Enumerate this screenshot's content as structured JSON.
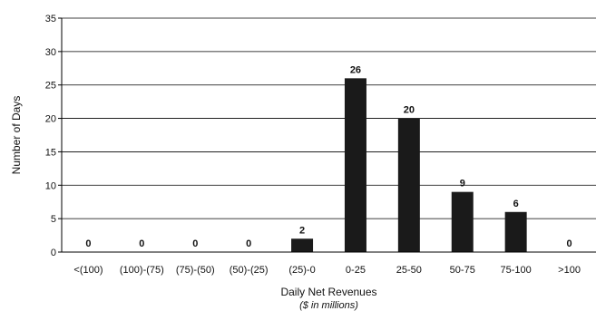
{
  "chart_data": {
    "type": "bar",
    "categories": [
      "<(100)",
      "(100)-(75)",
      "(75)-(50)",
      "(50)-(25)",
      "(25)-0",
      "0-25",
      "25-50",
      "50-75",
      "75-100",
      ">100"
    ],
    "values": [
      0,
      0,
      0,
      0,
      2,
      26,
      20,
      9,
      6,
      0
    ],
    "data_labels": [
      "0",
      "0",
      "0",
      "0",
      "2",
      "26",
      "20",
      "9",
      "6",
      "0"
    ],
    "xlabel": "Daily Net Revenues",
    "xlabel_sub": "($ in millions)",
    "ylabel": "Number of Days",
    "ylim": [
      0,
      35
    ],
    "yticks": [
      0,
      5,
      10,
      15,
      20,
      25,
      30,
      35
    ],
    "grid": true,
    "bar_color": "#1a1a1a"
  }
}
